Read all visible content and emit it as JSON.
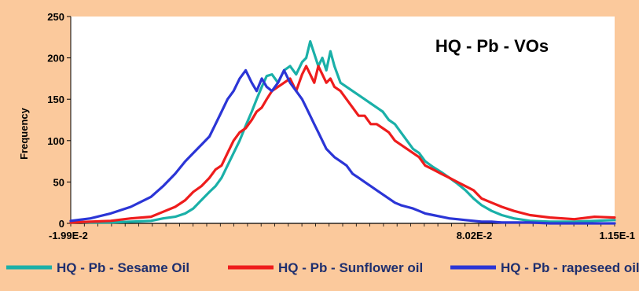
{
  "chart_data": {
    "type": "line",
    "title": "HQ - Pb - VOs",
    "xlabel": "",
    "ylabel": "Frequency",
    "xlim": [
      -0.0199,
      0.115
    ],
    "ylim": [
      0,
      250
    ],
    "y_ticks": [
      0,
      50,
      100,
      150,
      200,
      250
    ],
    "x_tick_labels": [
      {
        "value": -0.0199,
        "label": "-1.99E-2"
      },
      {
        "value": 0.0802,
        "label": "8.02E-2"
      },
      {
        "value": 0.115,
        "label": "1.15E-1"
      }
    ],
    "grid": false,
    "legend_position": "bottom",
    "series": [
      {
        "name": "HQ - Pb - Sesame Oil",
        "color": "#1ab0a8",
        "points": [
          [
            -0.0199,
            2
          ],
          [
            -0.015,
            1
          ],
          [
            -0.01,
            1
          ],
          [
            -0.005,
            2
          ],
          [
            0.0,
            3
          ],
          [
            0.003,
            6
          ],
          [
            0.006,
            8
          ],
          [
            0.0085,
            12
          ],
          [
            0.0105,
            18
          ],
          [
            0.0125,
            28
          ],
          [
            0.0145,
            38
          ],
          [
            0.016,
            45
          ],
          [
            0.0175,
            55
          ],
          [
            0.019,
            70
          ],
          [
            0.0205,
            85
          ],
          [
            0.022,
            100
          ],
          [
            0.0235,
            118
          ],
          [
            0.025,
            135
          ],
          [
            0.0262,
            150
          ],
          [
            0.0275,
            165
          ],
          [
            0.0287,
            178
          ],
          [
            0.03,
            180
          ],
          [
            0.0315,
            170
          ],
          [
            0.033,
            185
          ],
          [
            0.0345,
            190
          ],
          [
            0.036,
            180
          ],
          [
            0.0375,
            195
          ],
          [
            0.0385,
            200
          ],
          [
            0.0395,
            220
          ],
          [
            0.0405,
            205
          ],
          [
            0.0415,
            190
          ],
          [
            0.0425,
            200
          ],
          [
            0.0435,
            185
          ],
          [
            0.0445,
            208
          ],
          [
            0.0455,
            190
          ],
          [
            0.047,
            170
          ],
          [
            0.0485,
            165
          ],
          [
            0.05,
            160
          ],
          [
            0.0515,
            155
          ],
          [
            0.053,
            150
          ],
          [
            0.0545,
            145
          ],
          [
            0.056,
            140
          ],
          [
            0.0575,
            135
          ],
          [
            0.059,
            125
          ],
          [
            0.0605,
            120
          ],
          [
            0.062,
            110
          ],
          [
            0.0635,
            100
          ],
          [
            0.065,
            90
          ],
          [
            0.0665,
            85
          ],
          [
            0.068,
            75
          ],
          [
            0.07,
            68
          ],
          [
            0.072,
            62
          ],
          [
            0.074,
            55
          ],
          [
            0.076,
            48
          ],
          [
            0.078,
            40
          ],
          [
            0.08,
            30
          ],
          [
            0.082,
            22
          ],
          [
            0.0845,
            15
          ],
          [
            0.087,
            10
          ],
          [
            0.09,
            6
          ],
          [
            0.094,
            3
          ],
          [
            0.099,
            2
          ],
          [
            0.105,
            2
          ],
          [
            0.11,
            3
          ],
          [
            0.115,
            4
          ]
        ]
      },
      {
        "name": "HQ - Pb - Sunflower oil",
        "color": "#ee1c1c",
        "points": [
          [
            -0.0199,
            1
          ],
          [
            -0.015,
            2
          ],
          [
            -0.01,
            3
          ],
          [
            -0.005,
            6
          ],
          [
            0.0,
            8
          ],
          [
            0.003,
            14
          ],
          [
            0.006,
            20
          ],
          [
            0.0085,
            28
          ],
          [
            0.0105,
            38
          ],
          [
            0.0125,
            45
          ],
          [
            0.0145,
            55
          ],
          [
            0.016,
            65
          ],
          [
            0.0175,
            70
          ],
          [
            0.019,
            85
          ],
          [
            0.0205,
            100
          ],
          [
            0.022,
            110
          ],
          [
            0.0235,
            115
          ],
          [
            0.025,
            125
          ],
          [
            0.0262,
            135
          ],
          [
            0.0275,
            140
          ],
          [
            0.0287,
            150
          ],
          [
            0.03,
            160
          ],
          [
            0.0315,
            165
          ],
          [
            0.033,
            170
          ],
          [
            0.0345,
            175
          ],
          [
            0.036,
            160
          ],
          [
            0.0375,
            180
          ],
          [
            0.0385,
            190
          ],
          [
            0.0395,
            180
          ],
          [
            0.0405,
            170
          ],
          [
            0.0415,
            190
          ],
          [
            0.0425,
            180
          ],
          [
            0.0435,
            170
          ],
          [
            0.0445,
            175
          ],
          [
            0.0455,
            165
          ],
          [
            0.047,
            160
          ],
          [
            0.0485,
            150
          ],
          [
            0.05,
            140
          ],
          [
            0.0515,
            130
          ],
          [
            0.053,
            130
          ],
          [
            0.0545,
            120
          ],
          [
            0.056,
            120
          ],
          [
            0.0575,
            115
          ],
          [
            0.059,
            110
          ],
          [
            0.0605,
            100
          ],
          [
            0.062,
            95
          ],
          [
            0.0635,
            90
          ],
          [
            0.065,
            85
          ],
          [
            0.0665,
            80
          ],
          [
            0.068,
            70
          ],
          [
            0.07,
            65
          ],
          [
            0.072,
            60
          ],
          [
            0.074,
            55
          ],
          [
            0.076,
            50
          ],
          [
            0.078,
            45
          ],
          [
            0.08,
            40
          ],
          [
            0.082,
            30
          ],
          [
            0.0845,
            25
          ],
          [
            0.087,
            20
          ],
          [
            0.09,
            15
          ],
          [
            0.094,
            10
          ],
          [
            0.099,
            7
          ],
          [
            0.105,
            5
          ],
          [
            0.11,
            8
          ],
          [
            0.115,
            7
          ]
        ]
      },
      {
        "name": "HQ - Pb - rapeseed oil",
        "color": "#2b35d6",
        "points": [
          [
            -0.0199,
            3
          ],
          [
            -0.015,
            6
          ],
          [
            -0.01,
            12
          ],
          [
            -0.005,
            20
          ],
          [
            0.0,
            32
          ],
          [
            0.003,
            45
          ],
          [
            0.006,
            60
          ],
          [
            0.0085,
            75
          ],
          [
            0.0105,
            85
          ],
          [
            0.0125,
            95
          ],
          [
            0.0145,
            105
          ],
          [
            0.016,
            120
          ],
          [
            0.0175,
            135
          ],
          [
            0.019,
            150
          ],
          [
            0.0205,
            160
          ],
          [
            0.022,
            175
          ],
          [
            0.0235,
            185
          ],
          [
            0.025,
            170
          ],
          [
            0.0262,
            160
          ],
          [
            0.0275,
            175
          ],
          [
            0.0287,
            165
          ],
          [
            0.03,
            160
          ],
          [
            0.0315,
            170
          ],
          [
            0.033,
            185
          ],
          [
            0.0345,
            170
          ],
          [
            0.036,
            160
          ],
          [
            0.0375,
            150
          ],
          [
            0.0385,
            140
          ],
          [
            0.0395,
            130
          ],
          [
            0.0405,
            120
          ],
          [
            0.0415,
            110
          ],
          [
            0.0425,
            100
          ],
          [
            0.0435,
            90
          ],
          [
            0.0445,
            85
          ],
          [
            0.0455,
            80
          ],
          [
            0.047,
            75
          ],
          [
            0.0485,
            70
          ],
          [
            0.05,
            60
          ],
          [
            0.0515,
            55
          ],
          [
            0.053,
            50
          ],
          [
            0.0545,
            45
          ],
          [
            0.056,
            40
          ],
          [
            0.0575,
            35
          ],
          [
            0.059,
            30
          ],
          [
            0.0605,
            25
          ],
          [
            0.062,
            22
          ],
          [
            0.0635,
            20
          ],
          [
            0.065,
            18
          ],
          [
            0.0665,
            15
          ],
          [
            0.068,
            12
          ],
          [
            0.07,
            10
          ],
          [
            0.072,
            8
          ],
          [
            0.074,
            6
          ],
          [
            0.076,
            5
          ],
          [
            0.078,
            4
          ],
          [
            0.08,
            3
          ],
          [
            0.082,
            2
          ],
          [
            0.0845,
            2
          ],
          [
            0.087,
            1
          ],
          [
            0.09,
            1
          ],
          [
            0.094,
            1
          ],
          [
            0.099,
            0
          ],
          [
            0.105,
            0
          ],
          [
            0.11,
            0
          ],
          [
            0.115,
            0
          ]
        ]
      }
    ]
  }
}
